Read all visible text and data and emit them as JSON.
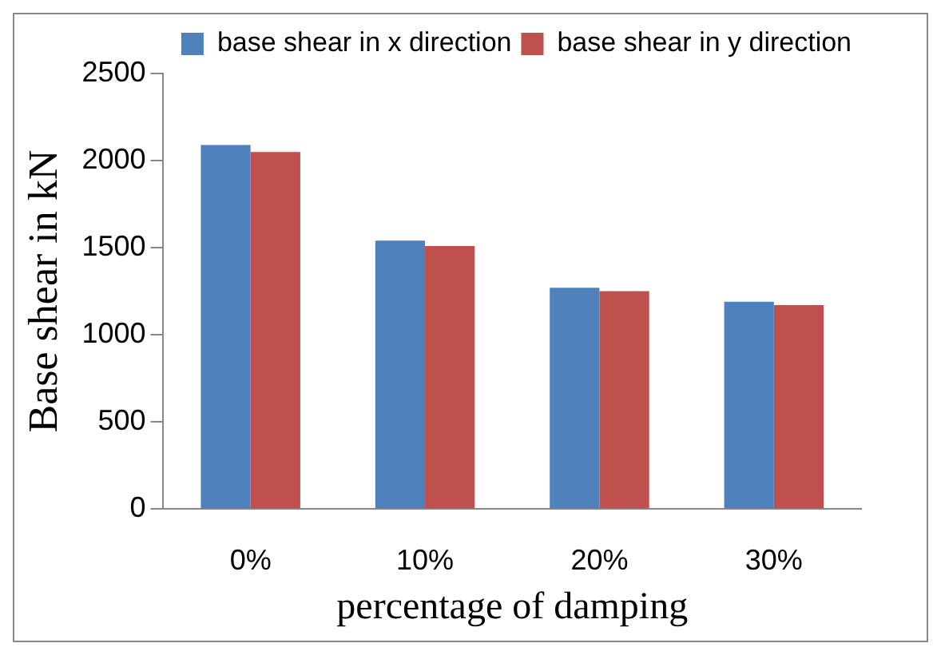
{
  "chart_data": {
    "type": "bar",
    "xlabel": "percentage of damping",
    "ylabel": "Base shear in kN",
    "categories": [
      "0%",
      "10%",
      "20%",
      "30%"
    ],
    "series": [
      {
        "name": "base shear in x direction",
        "color": "#4f81bd",
        "values": [
          2090,
          1540,
          1270,
          1190
        ]
      },
      {
        "name": "base shear in y direction",
        "color": "#c0504d",
        "values": [
          2050,
          1510,
          1250,
          1170
        ]
      }
    ],
    "ylim": [
      0,
      2500
    ],
    "yticks": [
      0,
      500,
      1000,
      1500,
      2000,
      2500
    ],
    "grid": false,
    "legend": "top right"
  }
}
